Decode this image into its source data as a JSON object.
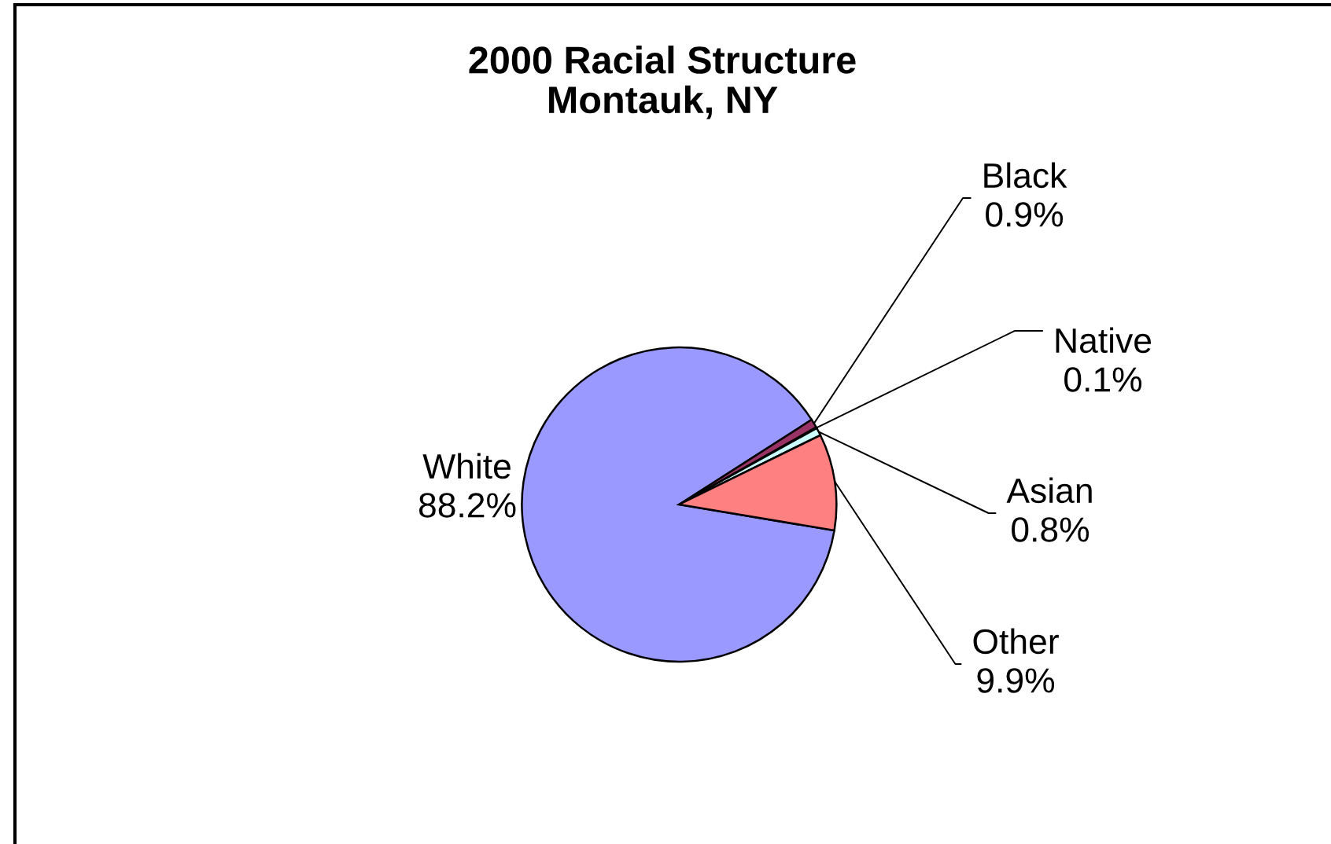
{
  "chart_data": {
    "type": "pie",
    "title": "2000 Racial Structure\nMontauk, NY",
    "categories": [
      "White",
      "Black",
      "Native",
      "Asian",
      "Other"
    ],
    "values": [
      88.2,
      0.9,
      0.1,
      0.8,
      9.9
    ],
    "colors": [
      "#9999ff",
      "#993366",
      "#ffffcc",
      "#ccffff",
      "#ff8080"
    ],
    "value_labels": [
      "88.2%",
      "0.9%",
      "0.1%",
      "0.8%",
      "9.9%"
    ]
  }
}
